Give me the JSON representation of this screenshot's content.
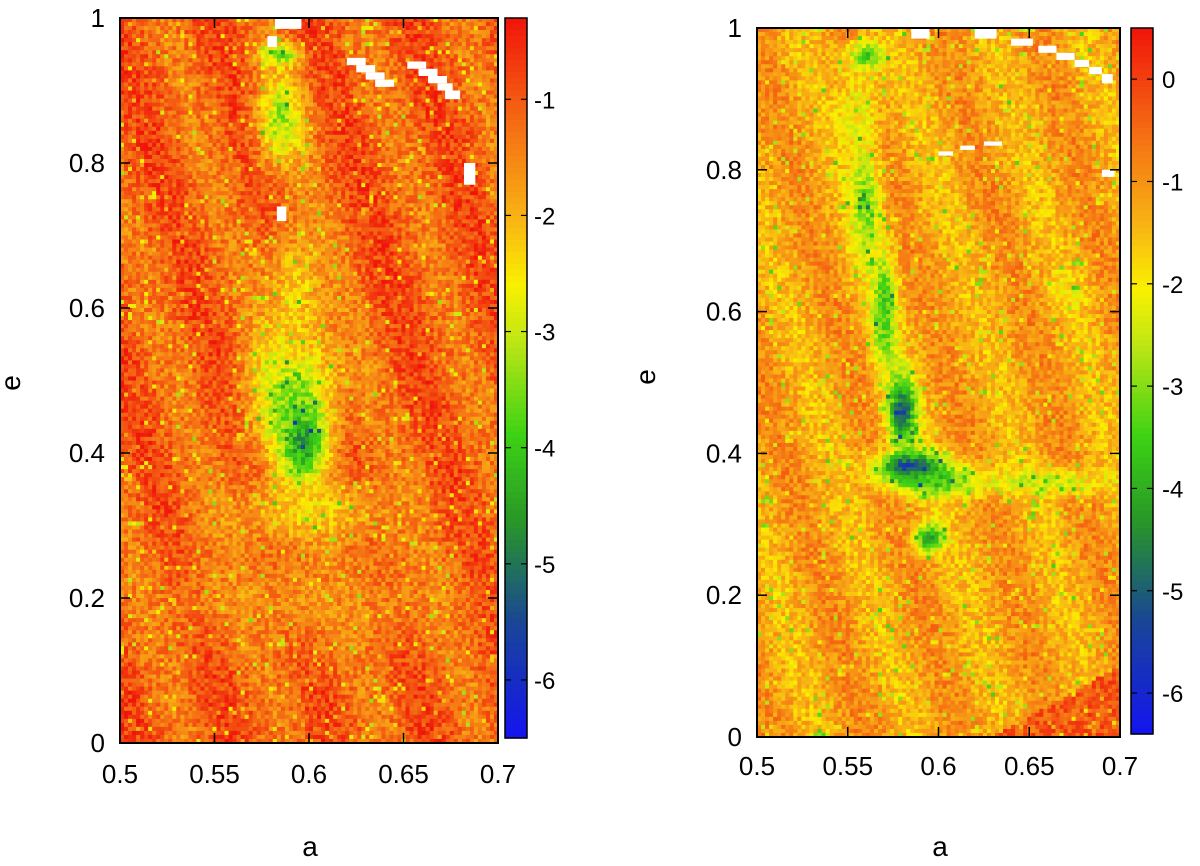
{
  "chart_data": [
    {
      "type": "heatmap",
      "panel": "left",
      "title": "",
      "xlabel": "a",
      "ylabel": "e",
      "xlim": [
        0.5,
        0.7
      ],
      "ylim": [
        0,
        1
      ],
      "xticks": [
        0.5,
        0.55,
        0.6,
        0.65,
        0.7
      ],
      "xtick_labels": [
        "0.5",
        "0.55",
        "0.6",
        "0.65",
        "0.7"
      ],
      "yticks": [
        0,
        0.2,
        0.4,
        0.6,
        0.8,
        1
      ],
      "ytick_labels": [
        "0",
        "0.2",
        "0.4",
        "0.6",
        "0.8",
        "1"
      ],
      "colorbar": {
        "range": [
          -6.5,
          -0.3
        ],
        "ticks": [
          -1,
          -2,
          -3,
          -4,
          -5,
          -6
        ],
        "tick_labels": [
          "-1",
          "-2",
          "-3",
          "-4",
          "-5",
          "-6"
        ]
      },
      "background_value": -1.1,
      "features": [
        {
          "a": 0.592,
          "e": 0.48,
          "sa": 0.022,
          "se": 0.09,
          "value": -3.6
        },
        {
          "a": 0.597,
          "e": 0.41,
          "sa": 0.012,
          "se": 0.05,
          "value": -4.6
        },
        {
          "a": 0.593,
          "e": 0.62,
          "sa": 0.015,
          "se": 0.1,
          "value": -2.3
        },
        {
          "a": 0.585,
          "e": 0.86,
          "sa": 0.012,
          "se": 0.06,
          "value": -3.3
        },
        {
          "a": 0.585,
          "e": 0.95,
          "sa": 0.01,
          "se": 0.015,
          "value": -3.6
        },
        {
          "a": 0.6,
          "e": 0.32,
          "sa": 0.04,
          "se": 0.045,
          "value": -2.4
        },
        {
          "a": 0.6,
          "e": 0.2,
          "sa": 0.08,
          "se": 0.07,
          "value": -1.6
        }
      ],
      "blank_cells": [
        {
          "a": [
            0.582,
            0.596
          ],
          "e": [
            0.985,
            1.0
          ]
        },
        {
          "a": [
            0.62,
            0.63
          ],
          "e": [
            0.935,
            0.945
          ]
        },
        {
          "a": [
            0.625,
            0.635
          ],
          "e": [
            0.925,
            0.935
          ]
        },
        {
          "a": [
            0.63,
            0.64
          ],
          "e": [
            0.915,
            0.925
          ]
        },
        {
          "a": [
            0.635,
            0.645
          ],
          "e": [
            0.905,
            0.915
          ]
        },
        {
          "a": [
            0.652,
            0.662
          ],
          "e": [
            0.93,
            0.94
          ]
        },
        {
          "a": [
            0.658,
            0.668
          ],
          "e": [
            0.92,
            0.93
          ]
        },
        {
          "a": [
            0.663,
            0.673
          ],
          "e": [
            0.91,
            0.92
          ]
        },
        {
          "a": [
            0.668,
            0.676
          ],
          "e": [
            0.9,
            0.91
          ]
        },
        {
          "a": [
            0.672,
            0.68
          ],
          "e": [
            0.888,
            0.9
          ]
        },
        {
          "a": [
            0.682,
            0.688
          ],
          "e": [
            0.77,
            0.8
          ]
        },
        {
          "a": [
            0.583,
            0.588
          ],
          "e": [
            0.72,
            0.74
          ]
        },
        {
          "a": [
            0.578,
            0.583
          ],
          "e": [
            0.96,
            0.975
          ]
        }
      ]
    },
    {
      "type": "heatmap",
      "panel": "right",
      "title": "",
      "xlabel": "a",
      "ylabel": "e",
      "xlim": [
        0.5,
        0.7
      ],
      "ylim": [
        0,
        1
      ],
      "xticks": [
        0.5,
        0.55,
        0.6,
        0.65,
        0.7
      ],
      "xtick_labels": [
        "0.5",
        "0.55",
        "0.6",
        "0.65",
        "0.7"
      ],
      "yticks": [
        0,
        0.2,
        0.4,
        0.6,
        0.8,
        1
      ],
      "ytick_labels": [
        "0",
        "0.2",
        "0.4",
        "0.6",
        "0.8",
        "1"
      ],
      "colorbar": {
        "range": [
          -6.4,
          0.5
        ],
        "ticks": [
          0,
          -1,
          -2,
          -3,
          -4,
          -5,
          -6
        ],
        "tick_labels": [
          "0",
          "-1",
          "-2",
          "-3",
          "-4",
          "-5",
          "-6"
        ]
      },
      "background_value": -1.2,
      "features": [
        {
          "a": 0.555,
          "e": 0.88,
          "sa": 0.012,
          "se": 0.07,
          "value": -2.1
        },
        {
          "a": 0.56,
          "e": 0.75,
          "sa": 0.008,
          "se": 0.08,
          "value": -3.1
        },
        {
          "a": 0.57,
          "e": 0.6,
          "sa": 0.007,
          "se": 0.08,
          "value": -3.6
        },
        {
          "a": 0.58,
          "e": 0.46,
          "sa": 0.008,
          "se": 0.05,
          "value": -5.0
        },
        {
          "a": 0.585,
          "e": 0.38,
          "sa": 0.018,
          "se": 0.02,
          "value": -5.8
        },
        {
          "a": 0.6,
          "e": 0.36,
          "sa": 0.025,
          "se": 0.02,
          "value": -3.8
        },
        {
          "a": 0.595,
          "e": 0.28,
          "sa": 0.008,
          "se": 0.02,
          "value": -4.4
        },
        {
          "a": 0.56,
          "e": 0.96,
          "sa": 0.01,
          "se": 0.02,
          "value": -3.5
        },
        {
          "a": 0.66,
          "e": 0.36,
          "sa": 0.04,
          "se": 0.02,
          "value": -2.4
        },
        {
          "a": 0.672,
          "e": 0.63,
          "sa": 0.01,
          "se": 0.03,
          "value": -2.0
        }
      ],
      "high_region": {
        "a": [
          0.63,
          0.7
        ],
        "e_at_a_min": 0.0,
        "e_at_a_max": 0.1,
        "value": -0.3
      },
      "blank_cells": [
        {
          "a": [
            0.585,
            0.595
          ],
          "e": [
            0.985,
            1.0
          ]
        },
        {
          "a": [
            0.62,
            0.632
          ],
          "e": [
            0.985,
            1.0
          ]
        },
        {
          "a": [
            0.64,
            0.652
          ],
          "e": [
            0.975,
            0.985
          ]
        },
        {
          "a": [
            0.655,
            0.665
          ],
          "e": [
            0.965,
            0.975
          ]
        },
        {
          "a": [
            0.665,
            0.675
          ],
          "e": [
            0.955,
            0.965
          ]
        },
        {
          "a": [
            0.675,
            0.683
          ],
          "e": [
            0.945,
            0.955
          ]
        },
        {
          "a": [
            0.683,
            0.69
          ],
          "e": [
            0.935,
            0.945
          ]
        },
        {
          "a": [
            0.69,
            0.696
          ],
          "e": [
            0.922,
            0.935
          ]
        },
        {
          "a": [
            0.6,
            0.608
          ],
          "e": [
            0.82,
            0.826
          ]
        },
        {
          "a": [
            0.612,
            0.62
          ],
          "e": [
            0.828,
            0.834
          ]
        },
        {
          "a": [
            0.625,
            0.635
          ],
          "e": [
            0.834,
            0.84
          ]
        },
        {
          "a": [
            0.69,
            0.697
          ],
          "e": [
            0.79,
            0.8
          ]
        }
      ]
    }
  ]
}
